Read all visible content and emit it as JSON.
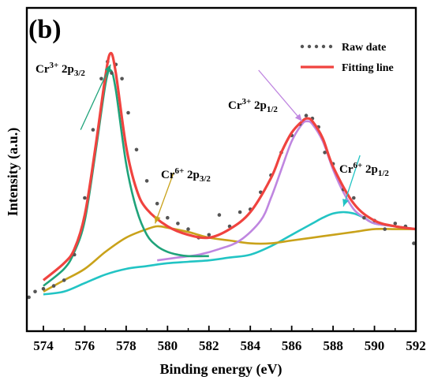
{
  "panel_label": "(b)",
  "chart_data": {
    "type": "line",
    "xlabel": "Binding energy (eV)",
    "ylabel": "Intensity (a.u.)",
    "xlim": [
      573.2,
      592
    ],
    "ylim": [
      0,
      100
    ],
    "x_ticks": [
      574,
      576,
      578,
      580,
      582,
      584,
      586,
      588,
      590,
      592
    ],
    "y_ticks_labeled": false,
    "grid": false,
    "legend_position": "top-right",
    "legend": [
      {
        "label": "Raw date",
        "style": "dotted",
        "color": "#555555"
      },
      {
        "label": "Fitting line",
        "style": "solid",
        "color": "#f0433f"
      }
    ],
    "series": [
      {
        "name": "Raw date",
        "style": "dots",
        "color": "#555555",
        "x": [
          573.3,
          573.6,
          574.0,
          574.5,
          575.0,
          575.5,
          576.0,
          576.4,
          576.8,
          577.1,
          577.3,
          577.5,
          577.8,
          578.1,
          578.5,
          579.0,
          579.5,
          580.0,
          580.5,
          581.0,
          581.5,
          582.0,
          582.5,
          583.0,
          583.5,
          584.0,
          584.5,
          585.0,
          585.5,
          586.0,
          586.4,
          586.7,
          587.0,
          587.3,
          587.6,
          588.0,
          588.5,
          589.0,
          589.5,
          590.0,
          590.5,
          591.0,
          591.5,
          591.9
        ],
        "y": [
          5,
          7,
          8,
          9,
          11,
          20,
          40,
          64,
          82,
          88,
          84,
          87,
          82,
          70,
          57,
          46,
          38,
          33,
          31,
          29,
          26,
          27,
          34,
          30,
          35,
          36,
          42,
          48,
          56,
          62,
          66,
          69,
          68,
          65,
          56,
          52,
          43,
          40,
          33,
          32,
          29,
          31,
          30,
          24
        ]
      },
      {
        "name": "",
        "style": "solid",
        "color": "#f0433f",
        "x": [
          574.0,
          575.0,
          575.5,
          576.0,
          576.5,
          577.0,
          577.25,
          577.5,
          578.0,
          578.5,
          579.0,
          580.0,
          581.0,
          582.0,
          583.0,
          584.0,
          585.0,
          585.5,
          586.0,
          586.5,
          586.75,
          587.0,
          587.5,
          588.0,
          589.0,
          590.0,
          591.0,
          592.0
        ],
        "y": [
          11,
          17,
          22,
          34,
          57,
          83,
          91,
          84,
          58,
          43,
          36,
          30,
          27,
          26,
          29,
          35,
          47,
          56,
          63,
          67,
          68,
          67,
          61,
          51,
          38,
          32,
          30,
          29
        ]
      },
      {
        "name": "",
        "style": "solid",
        "color": "#1fa37a",
        "x": [
          574.0,
          575.0,
          575.5,
          576.0,
          576.5,
          577.0,
          577.25,
          577.5,
          578.0,
          578.5,
          579.0,
          579.5,
          580.0,
          580.5,
          581.0,
          582.0
        ],
        "y": [
          9,
          15,
          21,
          32,
          55,
          80,
          85,
          78,
          52,
          36,
          27,
          23,
          21,
          20,
          19.5,
          19.5
        ]
      },
      {
        "name": "",
        "style": "solid",
        "color": "#bf86e0",
        "x": [
          579.5,
          580.5,
          581.5,
          582.5,
          583.5,
          584.5,
          585.0,
          585.5,
          586.0,
          586.5,
          586.75,
          587.0,
          587.5,
          588.0,
          588.5,
          589.0,
          589.5,
          590.0,
          591.0,
          592.0
        ],
        "y": [
          18,
          19,
          20,
          22,
          25,
          32,
          40,
          50,
          60,
          66,
          67,
          66,
          60,
          50,
          42,
          36,
          33,
          31,
          30,
          29
        ]
      },
      {
        "name": "",
        "style": "solid",
        "color": "#c9a21a",
        "x": [
          574.0,
          575.0,
          576.0,
          577.0,
          578.0,
          579.0,
          579.5,
          580.0,
          581.0,
          582.0,
          583.0,
          584.0,
          585.0,
          586.0,
          587.0,
          588.0,
          589.0,
          590.0,
          591.0,
          592.0
        ],
        "y": [
          7,
          11,
          15,
          21,
          26,
          29,
          30,
          29.5,
          28,
          26,
          25,
          24,
          24,
          25,
          26,
          27,
          28,
          29,
          29,
          29
        ]
      },
      {
        "name": "",
        "style": "solid",
        "color": "#22c4c4",
        "x": [
          574.0,
          575.0,
          576.0,
          577.0,
          578.0,
          579.0,
          580.0,
          581.0,
          582.0,
          583.0,
          584.0,
          585.0,
          586.0,
          587.0,
          587.5,
          588.0,
          588.5,
          589.0,
          589.5,
          590.0,
          591.0,
          592.0
        ],
        "y": [
          6,
          7,
          10,
          13,
          15,
          16,
          17,
          17.5,
          18,
          19,
          20,
          23,
          27,
          31,
          33,
          34.5,
          35,
          34.5,
          33,
          31,
          30,
          29
        ]
      }
    ],
    "annotations": [
      {
        "base": "Cr",
        "sup": "3+",
        "main": " 2p",
        "sub": "3/2",
        "arrow_color": "#1fa37a",
        "tip": [
          577.25,
          87
        ],
        "tail": [
          575.8,
          64
        ]
      },
      {
        "base": "Cr",
        "sup": "6+",
        "main": " 2p",
        "sub": "3/2",
        "arrow_color": "#c9a21a",
        "tip": [
          579.4,
          31
        ],
        "tail": [
          580.3,
          49
        ]
      },
      {
        "base": "Cr",
        "sup": "3+",
        "main": " 2p",
        "sub": "1/2",
        "arrow_color": "#bf86e0",
        "tip": [
          586.5,
          67
        ],
        "tail": [
          584.4,
          85
        ]
      },
      {
        "base": "Cr",
        "sup": "6+",
        "main": " 2p",
        "sub": "1/2",
        "arrow_color": "#22c4c4",
        "tip": [
          588.5,
          37
        ],
        "tail": [
          589.3,
          55
        ]
      }
    ]
  }
}
